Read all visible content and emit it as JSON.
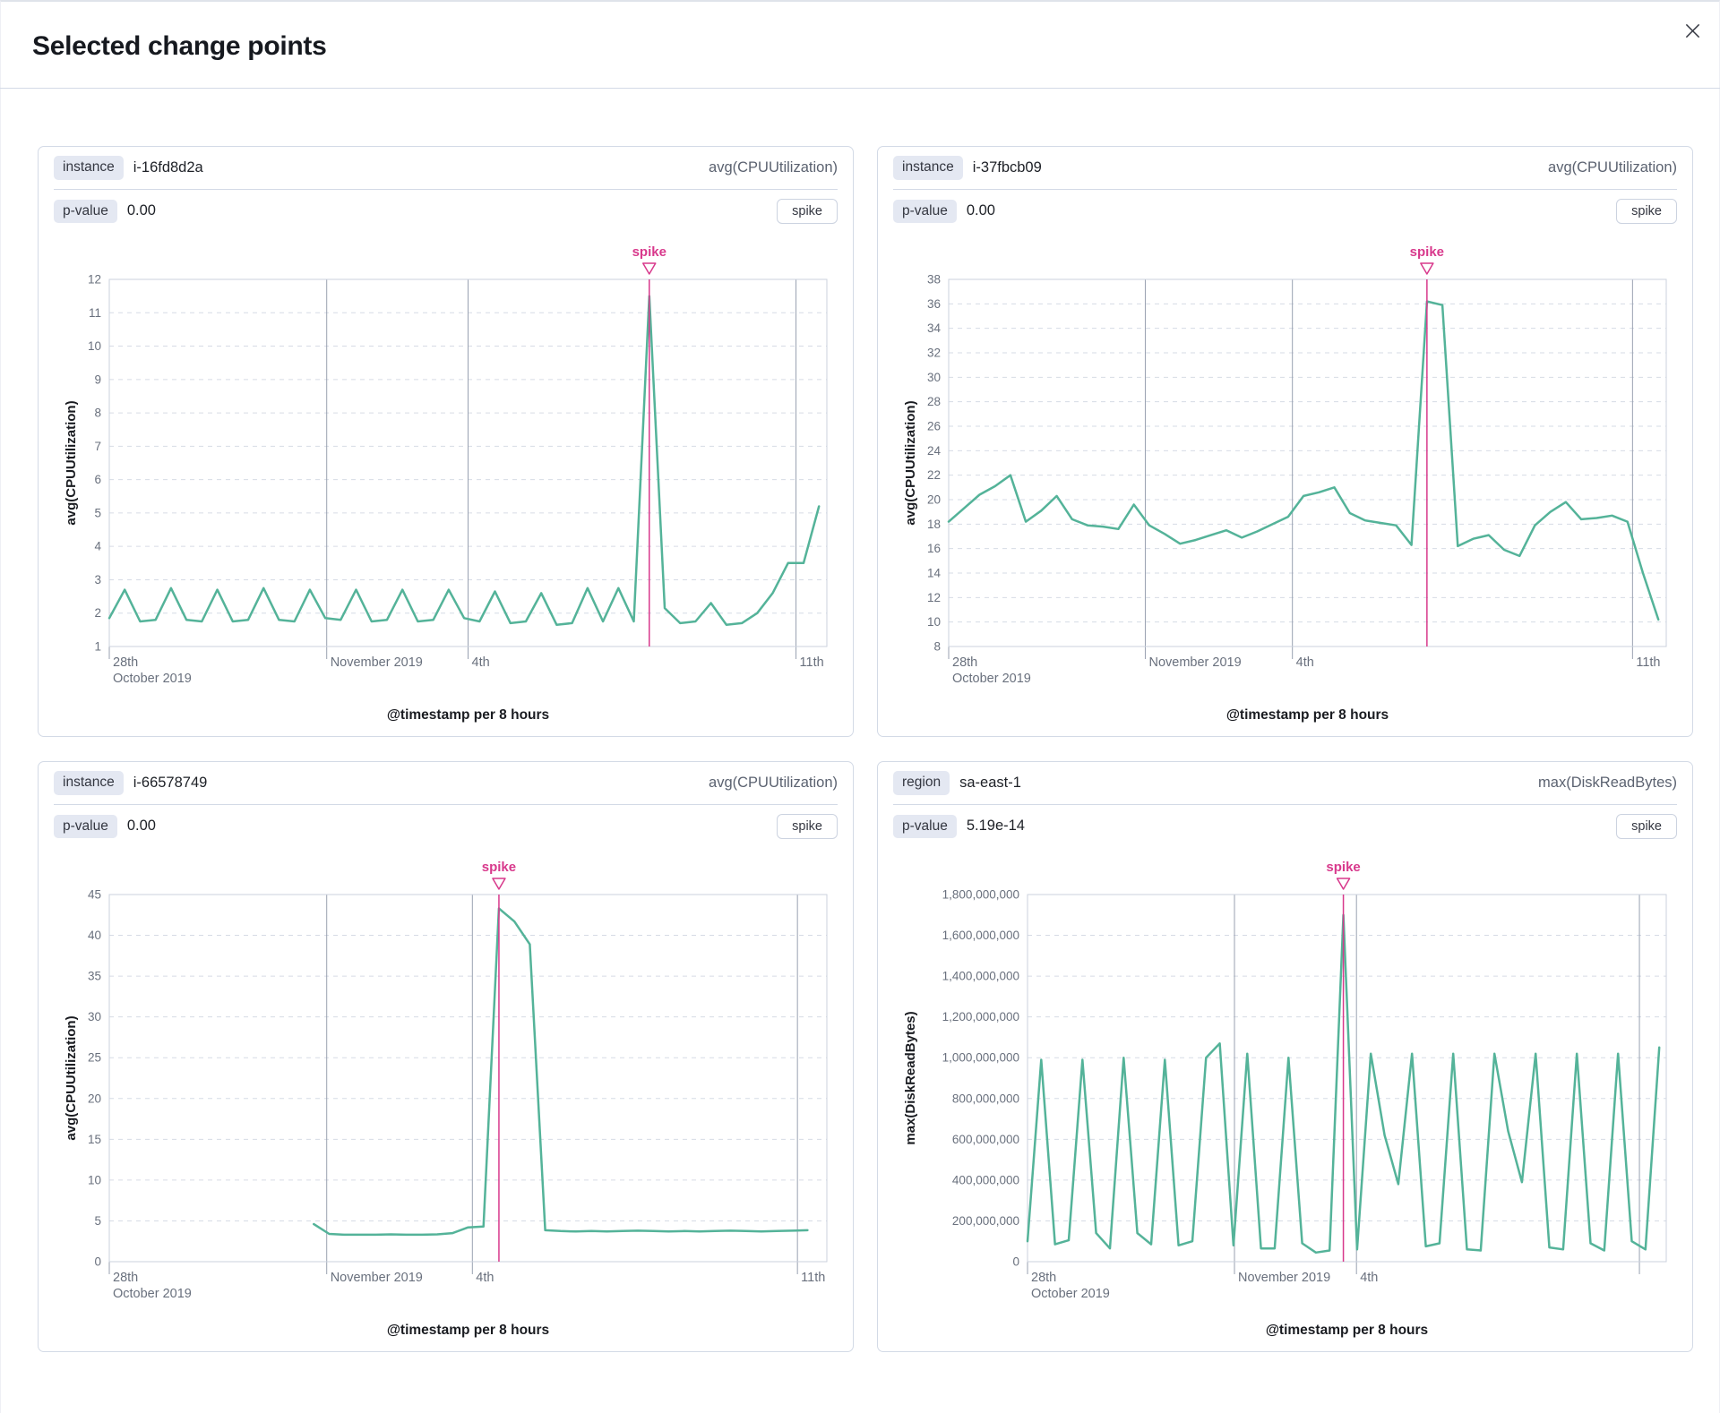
{
  "modal": {
    "title": "Selected change points"
  },
  "colors": {
    "series_line": "#54B399",
    "annotation": "#D8398C",
    "grid_dashed": "#D6DBE5",
    "grid_solid": "#99A1B1",
    "plot_border": "#CBD2DE",
    "tick_text": "#69707D",
    "axis_title_text": "#1A1C21"
  },
  "panels": [
    {
      "key_label": "instance",
      "key_value": "i-16fd8d2a",
      "metric": "avg(CPUUtilization)",
      "pvalue_label": "p-value",
      "pvalue_value": "0.00",
      "change_type_label": "spike"
    },
    {
      "key_label": "instance",
      "key_value": "i-37fbcb09",
      "metric": "avg(CPUUtilization)",
      "pvalue_label": "p-value",
      "pvalue_value": "0.00",
      "change_type_label": "spike"
    },
    {
      "key_label": "instance",
      "key_value": "i-66578749",
      "metric": "avg(CPUUtilization)",
      "pvalue_label": "p-value",
      "pvalue_value": "0.00",
      "change_type_label": "spike"
    },
    {
      "key_label": "region",
      "key_value": "sa-east-1",
      "metric": "max(DiskReadBytes)",
      "pvalue_label": "p-value",
      "pvalue_value": "5.19e-14",
      "change_type_label": "spike"
    }
  ],
  "chart_data": [
    {
      "type": "line",
      "y_title": "avg(CPUUtilization)",
      "x_title": "@timestamp per 8 hours",
      "y_min": 1,
      "y_max": 12,
      "y_ticks": [
        [
          12,
          "12"
        ],
        [
          11,
          "11"
        ],
        [
          10,
          "10"
        ],
        [
          9,
          "9"
        ],
        [
          8,
          "8"
        ],
        [
          7,
          "7"
        ],
        [
          6,
          "6"
        ],
        [
          5,
          "5"
        ],
        [
          4,
          "4"
        ],
        [
          3,
          "3"
        ],
        [
          2,
          "2"
        ],
        [
          1,
          "1"
        ]
      ],
      "x_ticks": [
        {
          "frac": 0.0,
          "lines": [
            "28th",
            "October 2019"
          ]
        },
        {
          "frac": 0.303,
          "lines": [
            "November 2019"
          ]
        },
        {
          "frac": 0.5,
          "lines": [
            "4th"
          ]
        },
        {
          "frac": 0.957,
          "lines": [
            "11th"
          ]
        }
      ],
      "x_start": 0.0,
      "x_step": 0.0215,
      "spike_index": 35,
      "spike_label": "spike",
      "values": [
        1.85,
        2.7,
        1.75,
        1.8,
        2.75,
        1.8,
        1.75,
        2.7,
        1.75,
        1.8,
        2.75,
        1.8,
        1.75,
        2.7,
        1.85,
        1.8,
        2.7,
        1.75,
        1.8,
        2.7,
        1.75,
        1.8,
        2.7,
        1.85,
        1.75,
        2.65,
        1.7,
        1.75,
        2.6,
        1.65,
        1.7,
        2.75,
        1.75,
        2.75,
        1.75,
        11.5,
        2.15,
        1.7,
        1.75,
        2.3,
        1.65,
        1.7,
        2.0,
        2.6,
        3.5,
        3.5,
        5.2
      ]
    },
    {
      "type": "line",
      "y_title": "avg(CPUUtilization)",
      "x_title": "@timestamp per 8 hours",
      "y_min": 8,
      "y_max": 38,
      "y_ticks": [
        [
          38,
          "38"
        ],
        [
          36,
          "36"
        ],
        [
          34,
          "34"
        ],
        [
          32,
          "32"
        ],
        [
          30,
          "30"
        ],
        [
          28,
          "28"
        ],
        [
          26,
          "26"
        ],
        [
          24,
          "24"
        ],
        [
          22,
          "22"
        ],
        [
          20,
          "20"
        ],
        [
          18,
          "18"
        ],
        [
          16,
          "16"
        ],
        [
          14,
          "14"
        ],
        [
          12,
          "12"
        ],
        [
          10,
          "10"
        ],
        [
          8,
          "8"
        ]
      ],
      "x_ticks": [
        {
          "frac": 0.0,
          "lines": [
            "28th",
            "October 2019"
          ]
        },
        {
          "frac": 0.274,
          "lines": [
            "November 2019"
          ]
        },
        {
          "frac": 0.479,
          "lines": [
            "4th"
          ]
        },
        {
          "frac": 0.953,
          "lines": [
            "11th"
          ]
        }
      ],
      "x_start": 0.0,
      "x_step": 0.0215,
      "spike_index": 31,
      "spike_label": "spike",
      "values": [
        18.2,
        19.3,
        20.4,
        21.1,
        22.0,
        18.2,
        19.1,
        20.3,
        18.4,
        17.9,
        17.8,
        17.6,
        19.6,
        17.9,
        17.2,
        16.4,
        16.7,
        17.1,
        17.5,
        16.9,
        17.4,
        18.0,
        18.6,
        20.3,
        20.6,
        21.0,
        18.9,
        18.3,
        18.1,
        17.9,
        16.3,
        36.2,
        35.9,
        16.2,
        16.8,
        17.1,
        15.9,
        15.4,
        17.9,
        19.0,
        19.8,
        18.4,
        18.5,
        18.7,
        18.2,
        14.0,
        10.2
      ]
    },
    {
      "type": "line",
      "y_title": "avg(CPUUtilization)",
      "x_title": "@timestamp per 8 hours",
      "y_min": 0,
      "y_max": 45,
      "y_ticks": [
        [
          45,
          "45"
        ],
        [
          40,
          "40"
        ],
        [
          35,
          "35"
        ],
        [
          30,
          "30"
        ],
        [
          25,
          "25"
        ],
        [
          20,
          "20"
        ],
        [
          15,
          "15"
        ],
        [
          10,
          "10"
        ],
        [
          5,
          "5"
        ],
        [
          0,
          "0"
        ]
      ],
      "x_ticks": [
        {
          "frac": 0.0,
          "lines": [
            "28th",
            "October 2019"
          ]
        },
        {
          "frac": 0.303,
          "lines": [
            "November 2019"
          ]
        },
        {
          "frac": 0.506,
          "lines": [
            "4th"
          ]
        },
        {
          "frac": 0.959,
          "lines": [
            "11th"
          ]
        }
      ],
      "x_start": 0.285,
      "x_step": 0.0215,
      "spike_index": 12,
      "spike_label": "spike",
      "values": [
        4.6,
        3.4,
        3.3,
        3.3,
        3.3,
        3.35,
        3.3,
        3.3,
        3.35,
        3.5,
        4.2,
        4.3,
        43.3,
        41.7,
        38.9,
        3.85,
        3.75,
        3.7,
        3.75,
        3.7,
        3.75,
        3.8,
        3.75,
        3.7,
        3.75,
        3.7,
        3.75,
        3.8,
        3.75,
        3.7,
        3.75,
        3.8,
        3.85
      ]
    },
    {
      "type": "line",
      "y_title": "max(DiskReadBytes)",
      "x_title": "@timestamp per 8 hours",
      "y_min": 0,
      "y_max": 1800000000,
      "y_ticks": [
        [
          1800000000,
          "1,800,000,000"
        ],
        [
          1600000000,
          "1,600,000,000"
        ],
        [
          1400000000,
          "1,400,000,000"
        ],
        [
          1200000000,
          "1,200,000,000"
        ],
        [
          1000000000,
          "1,000,000,000"
        ],
        [
          800000000,
          "800,000,000"
        ],
        [
          600000000,
          "600,000,000"
        ],
        [
          400000000,
          "400,000,000"
        ],
        [
          200000000,
          "200,000,000"
        ],
        [
          0,
          "0"
        ]
      ],
      "x_ticks": [
        {
          "frac": 0.0,
          "lines": [
            "28th",
            "October 2019"
          ]
        },
        {
          "frac": 0.324,
          "lines": [
            "November 2019"
          ]
        },
        {
          "frac": 0.515,
          "lines": [
            "4th"
          ]
        },
        {
          "frac": 0.958,
          "lines": []
        }
      ],
      "x_start": 0.0,
      "x_step": 0.0215,
      "spike_index": 23,
      "spike_label": "spike",
      "values": [
        100000000,
        990000000,
        85000000,
        105000000,
        990000000,
        140000000,
        65000000,
        1000000000,
        140000000,
        85000000,
        990000000,
        80000000,
        100000000,
        1000000000,
        1070000000,
        80000000,
        1020000000,
        65000000,
        65000000,
        1000000000,
        90000000,
        45000000,
        55000000,
        1700000000,
        60000000,
        1020000000,
        620000000,
        380000000,
        1020000000,
        75000000,
        90000000,
        1020000000,
        60000000,
        55000000,
        1020000000,
        640000000,
        390000000,
        1020000000,
        70000000,
        60000000,
        1020000000,
        90000000,
        55000000,
        1020000000,
        100000000,
        60000000,
        1050000000
      ]
    }
  ]
}
